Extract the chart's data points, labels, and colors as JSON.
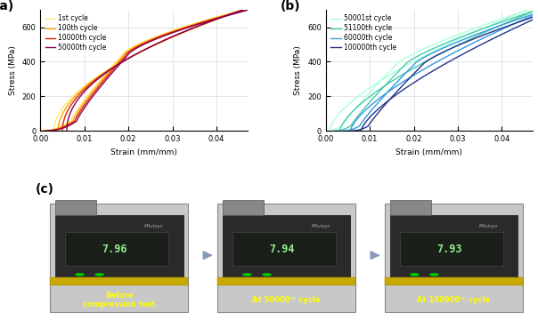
{
  "panel_a": {
    "label": "(a)",
    "xlabel": "Strain (mm/mm)",
    "ylabel": "Stress (MPa)",
    "xlim": [
      0,
      0.047
    ],
    "ylim": [
      0,
      700
    ],
    "xticks": [
      0,
      0.01,
      0.02,
      0.03,
      0.04
    ],
    "yticks": [
      0,
      200,
      400,
      600
    ],
    "curves": [
      {
        "label": "1st cycle",
        "color": "#FFE870",
        "lw": 1.0
      },
      {
        "label": "100th cycle",
        "color": "#FFA500",
        "lw": 1.0
      },
      {
        "label": "10000th cycle",
        "color": "#DD2200",
        "lw": 1.0
      },
      {
        "label": "50000th cycle",
        "color": "#880055",
        "lw": 1.0
      }
    ]
  },
  "panel_b": {
    "label": "(b)",
    "xlabel": "Strain (mm/mm)",
    "ylabel": "Stress (MPa)",
    "xlim": [
      0,
      0.047
    ],
    "ylim": [
      0,
      700
    ],
    "xticks": [
      0,
      0.01,
      0.02,
      0.03,
      0.04
    ],
    "yticks": [
      0,
      200,
      400,
      600
    ],
    "curves": [
      {
        "label": "50001st cycle",
        "color": "#AAFFDD",
        "lw": 1.0
      },
      {
        "label": "51100th cycle",
        "color": "#44CCAA",
        "lw": 1.0
      },
      {
        "label": "60000th cycle",
        "color": "#3399DD",
        "lw": 1.0
      },
      {
        "label": "100000th cycle",
        "color": "#223388",
        "lw": 1.0
      }
    ]
  },
  "panel_c": {
    "label": "(c)",
    "measurements": [
      "7.96",
      "7.94",
      "7.93"
    ],
    "captions": [
      "Before\ncompression test",
      "At 50000ᵗʰ cycle",
      "At 100000ᵗʰ cycle"
    ]
  },
  "bg_color": "#ffffff"
}
